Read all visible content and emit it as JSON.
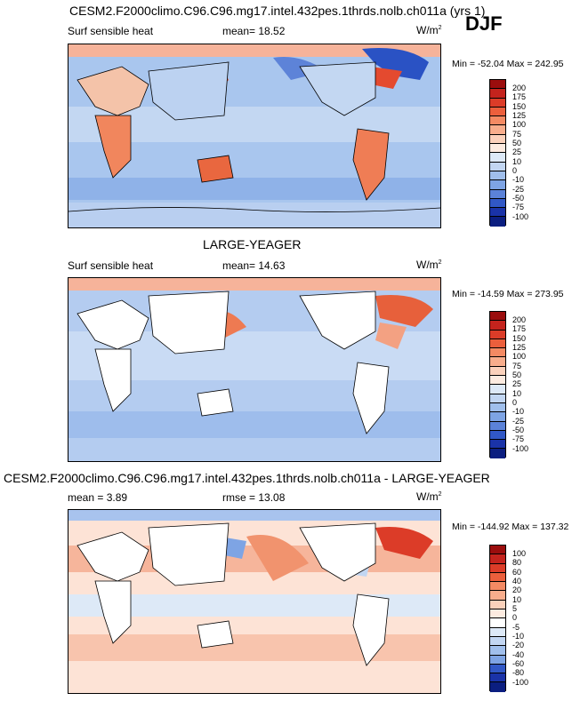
{
  "season": "DJF",
  "panels": [
    {
      "title": "CESM2.F2000climo.C96.C96.mg17.intel.432pes.1thrds.nolb.ch011a (yrs 1)",
      "left_label": "Surf sensible heat",
      "center_label": "mean=  18.52",
      "units_base": "W/m",
      "units_sup": "2",
      "minmax": "Min = -52.04 Max = 242.95",
      "colorbar": {
        "labels": [
          "200",
          "175",
          "150",
          "125",
          "100",
          "75",
          "50",
          "25",
          "10",
          "0",
          "-10",
          "-25",
          "-50",
          "-75",
          "-100"
        ],
        "colors": [
          "#9b0d0d",
          "#c4231d",
          "#dc3c28",
          "#ec5f3c",
          "#f48a63",
          "#f8ad8c",
          "#fbd1bb",
          "#fdebe0",
          "#dde9f7",
          "#c2d6f2",
          "#a0bfec",
          "#7ea4e4",
          "#5b82d8",
          "#3158c6",
          "#1a33a8",
          "#0b1e80"
        ]
      }
    },
    {
      "title": "LARGE-YEAGER",
      "left_label": "Surf sensible heat",
      "center_label": "mean=  14.63",
      "units_base": "W/m",
      "units_sup": "2",
      "minmax": "Min = -14.59 Max = 273.95",
      "colorbar": {
        "labels": [
          "200",
          "175",
          "150",
          "125",
          "100",
          "75",
          "50",
          "25",
          "10",
          "0",
          "-10",
          "-25",
          "-50",
          "-75",
          "-100"
        ],
        "colors": [
          "#9b0d0d",
          "#c4231d",
          "#dc3c28",
          "#ec5f3c",
          "#f48a63",
          "#f8ad8c",
          "#fbd1bb",
          "#fdebe0",
          "#dde9f7",
          "#c2d6f2",
          "#a0bfec",
          "#7ea4e4",
          "#5b82d8",
          "#3158c6",
          "#1a33a8",
          "#0b1e80"
        ]
      }
    },
    {
      "title": "CESM2.F2000climo.C96.C96.mg17.intel.432pes.1thrds.nolb.ch011a - LARGE-YEAGER",
      "left_label": "mean =   3.89",
      "center_label": "rmse =  13.08",
      "units_base": "W/m",
      "units_sup": "2",
      "minmax": "Min = -144.92 Max = 137.32",
      "colorbar": {
        "labels": [
          "100",
          "80",
          "60",
          "40",
          "20",
          "10",
          "5",
          "0",
          "-5",
          "-10",
          "-20",
          "-40",
          "-60",
          "-80",
          "-100"
        ],
        "colors": [
          "#9b0d0d",
          "#c4231d",
          "#dc3c28",
          "#ec5f3c",
          "#f48a63",
          "#f8ad8c",
          "#fbd1bb",
          "#fdebe0",
          "#ffffff",
          "#dde9f7",
          "#c2d6f2",
          "#a0bfec",
          "#7ea4e4",
          "#3158c6",
          "#1a33a8",
          "#0b1e80"
        ]
      }
    }
  ]
}
